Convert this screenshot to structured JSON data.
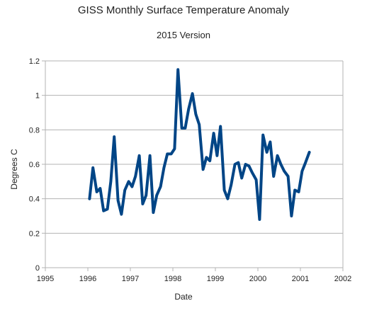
{
  "chart_data": {
    "type": "line",
    "title": "GISS Monthly Surface Temperature Anomaly",
    "subtitle": "2015 Version",
    "xlabel": "Date",
    "ylabel": "Degrees C",
    "xlim": [
      1995,
      2002
    ],
    "ylim": [
      0,
      1.2
    ],
    "xticks": [
      1995,
      1996,
      1997,
      1998,
      1999,
      2000,
      2001,
      2002
    ],
    "xtick_labels": [
      "1995",
      "1996",
      "1997",
      "1998",
      "1999",
      "2000",
      "2001",
      "2002"
    ],
    "yticks": [
      0,
      0.2,
      0.4,
      0.6,
      0.8,
      1,
      1.2
    ],
    "ytick_labels": [
      "0",
      "0.2",
      "0.4",
      "0.6",
      "0.8",
      "1",
      "1.2"
    ],
    "grid": "horizontal",
    "line_color": "#004586",
    "series": [
      {
        "x": [
          1996.04,
          1996.12,
          1996.21,
          1996.29,
          1996.37,
          1996.46,
          1996.54,
          1996.62,
          1996.71,
          1996.79,
          1996.87,
          1996.96,
          1997.04,
          1997.12,
          1997.21,
          1997.29,
          1997.37,
          1997.46,
          1997.54,
          1997.62,
          1997.71,
          1997.79,
          1997.87,
          1997.96,
          1998.04,
          1998.12,
          1998.21,
          1998.29,
          1998.37,
          1998.46,
          1998.54,
          1998.62,
          1998.71,
          1998.79,
          1998.87,
          1998.96,
          1999.04,
          1999.12,
          1999.21,
          1999.29,
          1999.37,
          1999.46,
          1999.54,
          1999.62,
          1999.71,
          1999.79,
          1999.87,
          1999.96,
          2000.04,
          2000.12,
          2000.21,
          2000.29,
          2000.37,
          2000.46,
          2000.54,
          2000.62,
          2000.71,
          2000.79,
          2000.87,
          2000.96,
          2001.04,
          2001.12,
          2001.21
        ],
        "values": [
          0.4,
          0.58,
          0.44,
          0.46,
          0.33,
          0.34,
          0.5,
          0.76,
          0.39,
          0.31,
          0.45,
          0.5,
          0.47,
          0.53,
          0.65,
          0.37,
          0.42,
          0.65,
          0.32,
          0.42,
          0.47,
          0.58,
          0.66,
          0.66,
          0.69,
          1.15,
          0.81,
          0.81,
          0.92,
          1.01,
          0.89,
          0.83,
          0.57,
          0.64,
          0.62,
          0.78,
          0.65,
          0.82,
          0.45,
          0.4,
          0.48,
          0.6,
          0.61,
          0.52,
          0.6,
          0.59,
          0.55,
          0.51,
          0.28,
          0.77,
          0.67,
          0.73,
          0.53,
          0.65,
          0.6,
          0.56,
          0.53,
          0.3,
          0.45,
          0.44,
          0.56,
          0.61,
          0.67
        ]
      }
    ]
  }
}
